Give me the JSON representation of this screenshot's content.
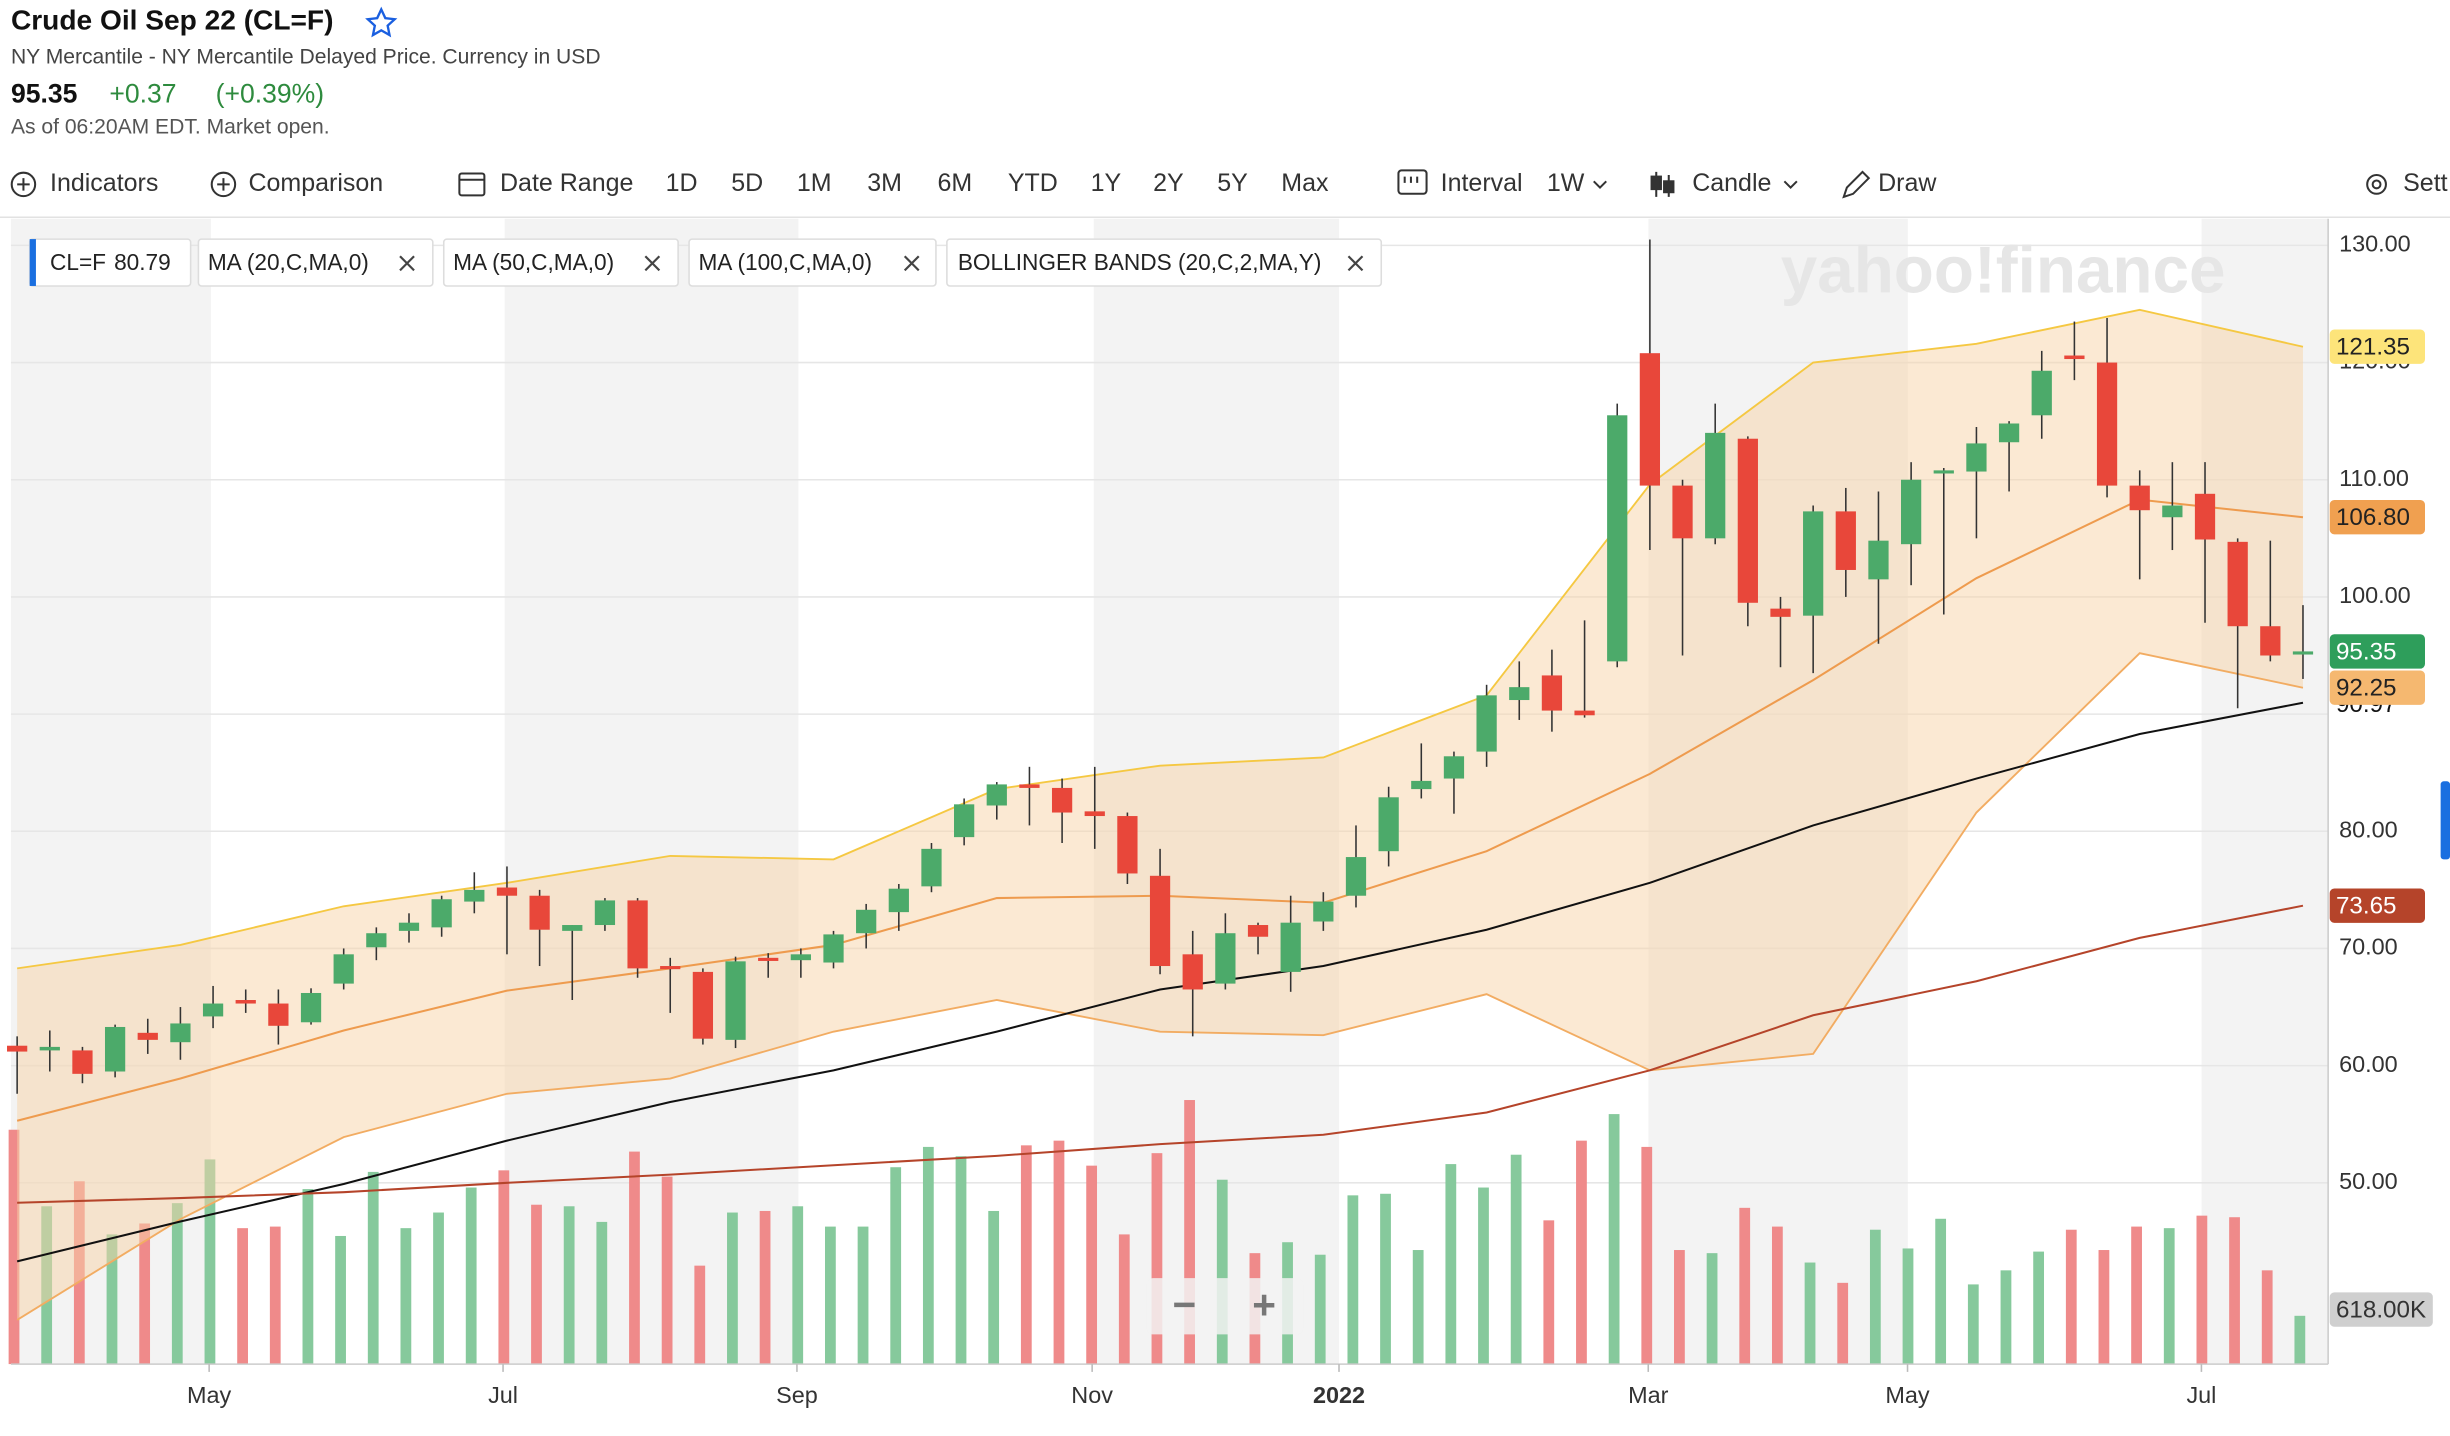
{
  "header": {
    "title": "Crude Oil Sep 22 (CL=F)",
    "subtitle": "NY Mercantile - NY Mercantile Delayed Price. Currency in USD",
    "price": "95.35",
    "change": "+0.37",
    "change_pct": "(+0.39%)",
    "as_of": "As of 06:20AM EDT. Market open."
  },
  "toolbar": {
    "indicators": "Indicators",
    "comparison": "Comparison",
    "date_range": "Date Range",
    "ranges": [
      "1D",
      "5D",
      "1M",
      "3M",
      "6M",
      "YTD",
      "1Y",
      "2Y",
      "5Y",
      "Max"
    ],
    "interval": "Interval",
    "interval_value": "1W",
    "chart_type": "Candle",
    "draw": "Draw",
    "settings": "Sett"
  },
  "legend": {
    "symbol": "CL=F",
    "symbol_value": 80.79
  },
  "watermark": "yahoo!finance",
  "zoom": [
    "−",
    "+"
  ],
  "chart_data": {
    "type": "candlestick",
    "x": [
      0,
      1,
      2,
      3,
      4,
      5,
      6,
      7,
      8,
      9,
      10,
      11,
      12,
      13,
      14,
      15,
      16,
      17,
      18,
      19,
      20,
      21,
      22,
      23,
      24,
      25,
      26,
      27,
      28,
      29,
      30,
      31,
      32,
      33,
      34,
      35,
      36,
      37,
      38,
      39,
      40,
      41,
      42,
      43,
      44,
      45,
      46,
      47,
      48,
      49,
      50,
      51,
      52,
      53,
      54,
      55,
      56,
      57,
      58,
      59,
      60,
      61,
      62,
      63,
      64,
      65,
      66,
      67,
      68,
      69,
      70
    ],
    "open": [
      61.7,
      61.3,
      61.3,
      59.5,
      62.8,
      62,
      64.2,
      65.6,
      65.3,
      63.7,
      67,
      70.1,
      71.5,
      71.8,
      74,
      75.2,
      74.5,
      71.5,
      72,
      74.1,
      68.5,
      68,
      62.2,
      69.2,
      69,
      68.8,
      71.3,
      73.1,
      75.3,
      79.5,
      82.2,
      84,
      83.7,
      81.7,
      81.3,
      76.2,
      69.5,
      67,
      72,
      68,
      72.3,
      74.5,
      78.3,
      83.6,
      84.5,
      86.8,
      91.2,
      93.3,
      90.3,
      94.5,
      120.8,
      109.5,
      105,
      113.5,
      99,
      98.4,
      107.3,
      101.5,
      104.5,
      110.6,
      110.7,
      113.2,
      115.5,
      120.6,
      120,
      109.5,
      106.8,
      108.8,
      104.7,
      97.5,
      95.2
    ],
    "high": [
      62.5,
      63,
      61.6,
      63.5,
      64,
      65,
      66.8,
      66.5,
      66.5,
      66.6,
      70,
      71.8,
      73,
      74.5,
      76.5,
      77,
      75,
      72,
      74.3,
      74.3,
      69.2,
      68.3,
      69.3,
      69.6,
      70,
      71.5,
      73.8,
      75.5,
      79,
      82.8,
      84.2,
      85.5,
      84.5,
      85.5,
      81.6,
      78.5,
      71.5,
      73,
      72.2,
      74.5,
      74.8,
      80.5,
      83.8,
      87.5,
      86.8,
      92.5,
      94.5,
      95.5,
      98,
      116.5,
      130.5,
      110,
      116.5,
      113.7,
      100,
      107.8,
      109.3,
      109,
      111.5,
      111,
      114.5,
      115,
      121,
      123.5,
      123.8,
      110.8,
      111.5,
      111.5,
      105,
      104.8,
      99.3
    ],
    "low": [
      57.6,
      59.5,
      58.5,
      59,
      61,
      60.5,
      63.2,
      64.5,
      61.8,
      63.5,
      66.5,
      69,
      70.5,
      71,
      73,
      69.5,
      68.5,
      65.6,
      71.5,
      67.5,
      64.5,
      61.8,
      61.5,
      67.5,
      67.5,
      68.3,
      70,
      71.5,
      74.8,
      78.8,
      81,
      80.5,
      79,
      78.5,
      75.5,
      67.8,
      62.5,
      66.5,
      69.5,
      66.3,
      71.5,
      73.5,
      77,
      82.8,
      81.5,
      85.5,
      89.5,
      88.5,
      89.7,
      94,
      104,
      95,
      104.5,
      97.5,
      94,
      93.5,
      100,
      96,
      101,
      98.5,
      105,
      109,
      113.5,
      118.5,
      108.5,
      101.5,
      104,
      97.8,
      90.5,
      94.5,
      93
    ],
    "close": [
      61.2,
      61.6,
      59.3,
      63.3,
      62.2,
      63.6,
      65.3,
      65.3,
      63.4,
      66.2,
      69.5,
      71.3,
      72.2,
      74.2,
      75,
      74.5,
      71.6,
      72,
      74.1,
      68.3,
      68.3,
      62.3,
      68.9,
      69,
      69.5,
      71.2,
      73.3,
      75.1,
      78.5,
      82.3,
      84,
      83.7,
      81.6,
      81.3,
      76.4,
      68.5,
      66.5,
      71.3,
      71,
      72.2,
      74,
      77.8,
      82.9,
      84.3,
      86.4,
      91.6,
      92.3,
      90.3,
      89.9,
      115.5,
      109.5,
      105,
      114,
      99.5,
      98.3,
      107.3,
      102.3,
      104.8,
      110,
      110.8,
      113.1,
      114.8,
      119.3,
      120.3,
      109.5,
      107.4,
      107.8,
      104.9,
      97.5,
      95,
      95.35
    ],
    "up_color": "#4caa6a",
    "down_color": "#e8473a",
    "volume": {
      "values": [
        3000,
        2020,
        2340,
        1660,
        1800,
        2060,
        2620,
        1740,
        1760,
        2240,
        1640,
        2460,
        1740,
        1940,
        2260,
        2480,
        2040,
        2020,
        1820,
        2720,
        2400,
        1260,
        1940,
        1960,
        2020,
        1760,
        1760,
        2520,
        2780,
        2660,
        1960,
        2800,
        2860,
        2540,
        1660,
        2700,
        3380,
        2360,
        1420,
        1560,
        1400,
        2160,
        2180,
        1460,
        2560,
        2260,
        2680,
        1840,
        2860,
        3200,
        2780,
        1460,
        1420,
        2000,
        1760,
        1300,
        1040,
        1720,
        1480,
        1860,
        1020,
        1200,
        1440,
        1720,
        1460,
        1760,
        1740,
        1900,
        1880,
        1200,
        618
      ],
      "ylim": [
        0,
        3500
      ],
      "last_label": "618.00K",
      "up_color": "#86c99c",
      "down_color": "#ef8a8a"
    },
    "series": [
      {
        "name": "MA (20,C,MA,0)",
        "color": "#ee9b4e",
        "x": [
          0,
          5,
          10,
          15,
          20,
          25,
          30,
          35,
          40,
          45,
          50,
          55,
          60,
          65,
          70
        ],
        "values": [
          55.3,
          58.9,
          63,
          66.4,
          68.3,
          70.3,
          74.3,
          74.5,
          73.9,
          78.3,
          84.9,
          92.9,
          101.6,
          108.3,
          106.8
        ],
        "last_label": "106.80",
        "label_color": "#f0a050"
      },
      {
        "name": "MA (50,C,MA,0)",
        "color": "#111111",
        "x": [
          0,
          5,
          10,
          15,
          20,
          25,
          30,
          35,
          40,
          45,
          50,
          55,
          60,
          65,
          70
        ],
        "values": [
          43.3,
          46.7,
          49.9,
          53.6,
          56.9,
          59.6,
          62.9,
          66.5,
          68.5,
          71.6,
          75.6,
          80.5,
          84.5,
          88.3,
          90.97
        ],
        "label_color": "#111111"
      },
      {
        "name": "MA (100,C,MA,0)",
        "color": "#b5442a",
        "x": [
          0,
          5,
          10,
          15,
          20,
          25,
          30,
          35,
          40,
          45,
          50,
          55,
          60,
          65,
          70
        ],
        "values": [
          48.3,
          48.7,
          49.2,
          50,
          50.7,
          51.5,
          52.3,
          53.3,
          54.1,
          56,
          59.6,
          64.3,
          67.2,
          70.9,
          73.65
        ],
        "label_color": "#b5442a"
      }
    ],
    "bands": {
      "name": "BOLLINGER BANDS (20,C,2,MA,Y)",
      "x": [
        0,
        5,
        10,
        15,
        20,
        25,
        30,
        35,
        40,
        45,
        50,
        55,
        60,
        65,
        70
      ],
      "upper": [
        68.3,
        70.3,
        73.6,
        75.6,
        77.9,
        77.6,
        83.6,
        85.6,
        86.3,
        91.6,
        109.6,
        120,
        121.6,
        124.5,
        121.35
      ],
      "lower": [
        38.3,
        46.9,
        53.9,
        57.6,
        58.9,
        62.9,
        65.6,
        62.9,
        62.6,
        66.1,
        59.6,
        61,
        81.6,
        95.2,
        92.25
      ],
      "upper_color": "#f5c842",
      "lower_color": "#f2ac62",
      "fill": "#f7d3a8",
      "upper_label_color": "#fde47a",
      "lower_label_color": "#f5b870"
    },
    "last_color": "#2e9e5b",
    "xlim": [
      -0.19,
      70.77
    ],
    "ylim": [
      34.53,
      132.27
    ],
    "xticks": [
      {
        "value": 5.88,
        "label": "May"
      },
      {
        "value": 14.88,
        "label": "Jul"
      },
      {
        "value": 23.88,
        "label": "Sep"
      },
      {
        "value": 32.92,
        "label": "Nov"
      },
      {
        "value": 40.48,
        "label": "2022"
      },
      {
        "value": 49.95,
        "label": "Mar"
      },
      {
        "value": 57.89,
        "label": "May"
      },
      {
        "value": 66.89,
        "label": "Jul"
      }
    ],
    "yticks": [
      {
        "value": 50,
        "label": "50.00"
      },
      {
        "value": 60,
        "label": "60.00"
      },
      {
        "value": 70,
        "label": "70.00"
      },
      {
        "value": 80,
        "label": "80.00"
      },
      {
        "value": 90,
        "label": "90.00"
      },
      {
        "value": 100,
        "label": "100.00"
      },
      {
        "value": 110,
        "label": "110.00"
      },
      {
        "value": 120,
        "label": "120.00"
      },
      {
        "value": 130,
        "label": "130.00"
      }
    ],
    "grid": true
  }
}
